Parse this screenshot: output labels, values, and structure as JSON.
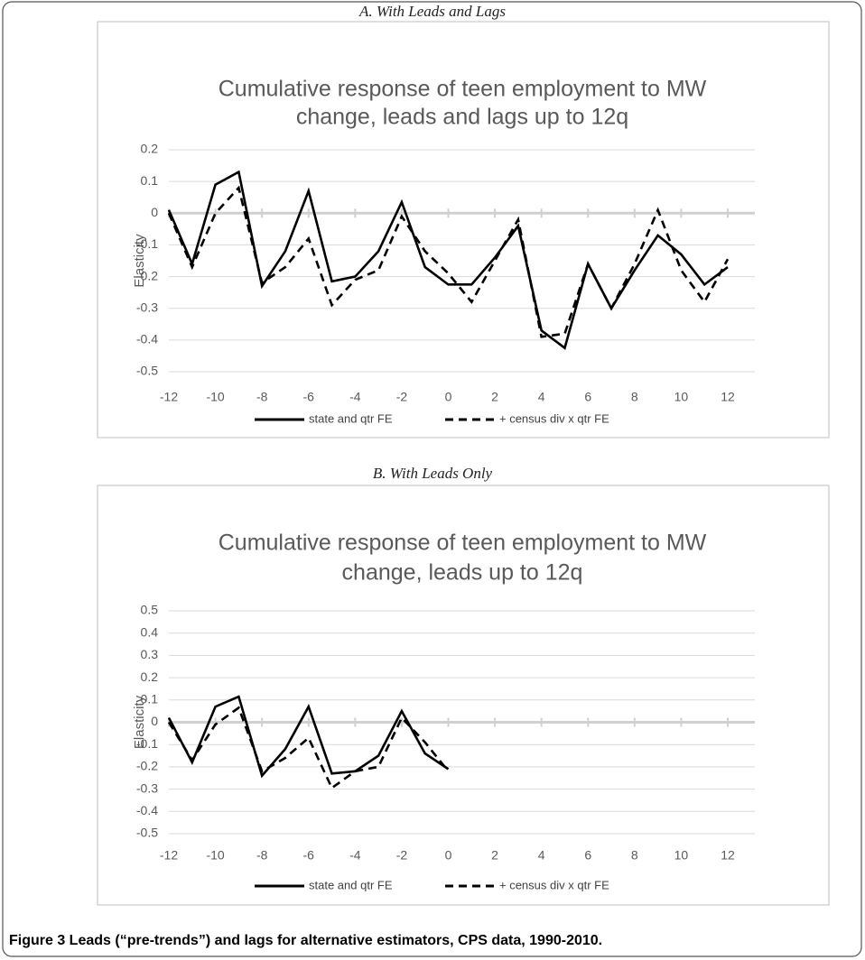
{
  "panels": [
    "A.  With Leads and Lags",
    "B.  With Leads Only"
  ],
  "caption": "Figure 3 Leads (“pre-trends”) and lags for alternative estimators, CPS data, 1990-2010.",
  "chart_data": [
    {
      "type": "line",
      "title": [
        "Cumulative response of teen employment to MW",
        "change, leads and lags up to 12q"
      ],
      "y_label": "Elasticity",
      "x": [
        -12,
        -11,
        -10,
        -9,
        -8,
        -7,
        -6,
        -5,
        -4,
        -3,
        -2,
        -1,
        0,
        1,
        2,
        3,
        4,
        5,
        6,
        7,
        8,
        9,
        10,
        11,
        12
      ],
      "series": [
        {
          "name": "state and qtr FE",
          "color": "#000000",
          "dash": "solid",
          "values": [
            0.01,
            -0.16,
            0.09,
            0.13,
            -0.23,
            -0.12,
            0.07,
            -0.215,
            -0.2,
            -0.12,
            0.035,
            -0.17,
            -0.225,
            -0.225,
            -0.14,
            -0.04,
            -0.37,
            -0.425,
            -0.16,
            -0.3,
            -0.18,
            -0.07,
            -0.13,
            -0.225,
            -0.17
          ]
        },
        {
          "name": "+ census div x qtr FE",
          "color": "#000000",
          "dash": "dashed",
          "values": [
            0.0,
            -0.17,
            0.0,
            0.08,
            -0.22,
            -0.17,
            -0.08,
            -0.29,
            -0.21,
            -0.18,
            -0.01,
            -0.12,
            -0.19,
            -0.28,
            -0.15,
            -0.02,
            -0.39,
            -0.38,
            -0.16,
            -0.3,
            -0.16,
            0.01,
            -0.18,
            -0.28,
            -0.145
          ]
        }
      ],
      "xlim": [
        -12,
        12
      ],
      "xticks": [
        -12,
        -10,
        -8,
        -6,
        -4,
        -2,
        0,
        2,
        4,
        6,
        8,
        10,
        12
      ],
      "ylim": [
        -0.5,
        0.2
      ],
      "yticks": [
        0.2,
        0.1,
        0,
        -0.1,
        -0.2,
        -0.3,
        -0.4,
        -0.5
      ],
      "grid": true,
      "legend": "bottom"
    },
    {
      "type": "line",
      "title": [
        "Cumulative response of teen employment to MW",
        "change, leads up to 12q"
      ],
      "y_label": "Elasticity",
      "x": [
        -12,
        -11,
        -10,
        -9,
        -8,
        -7,
        -6,
        -5,
        -4,
        -3,
        -2,
        -1,
        0
      ],
      "series": [
        {
          "name": "state and qtr FE",
          "color": "#000000",
          "dash": "solid",
          "values": [
            0.02,
            -0.18,
            0.07,
            0.115,
            -0.24,
            -0.12,
            0.07,
            -0.23,
            -0.22,
            -0.15,
            0.05,
            -0.14,
            -0.21
          ]
        },
        {
          "name": "+ census div x qtr FE",
          "color": "#000000",
          "dash": "dashed",
          "values": [
            0.0,
            -0.17,
            -0.01,
            0.065,
            -0.22,
            -0.16,
            -0.07,
            -0.295,
            -0.22,
            -0.2,
            0.02,
            -0.09,
            -0.22
          ]
        }
      ],
      "xlim": [
        -12,
        12
      ],
      "xticks": [
        -12,
        -10,
        -8,
        -6,
        -4,
        -2,
        0,
        2,
        4,
        6,
        8,
        10,
        12
      ],
      "ylim": [
        -0.5,
        0.5
      ],
      "yticks": [
        0.5,
        0.4,
        0.3,
        0.2,
        0.1,
        0,
        -0.1,
        -0.2,
        -0.3,
        -0.4,
        -0.5
      ],
      "grid": true,
      "legend": "bottom"
    }
  ]
}
